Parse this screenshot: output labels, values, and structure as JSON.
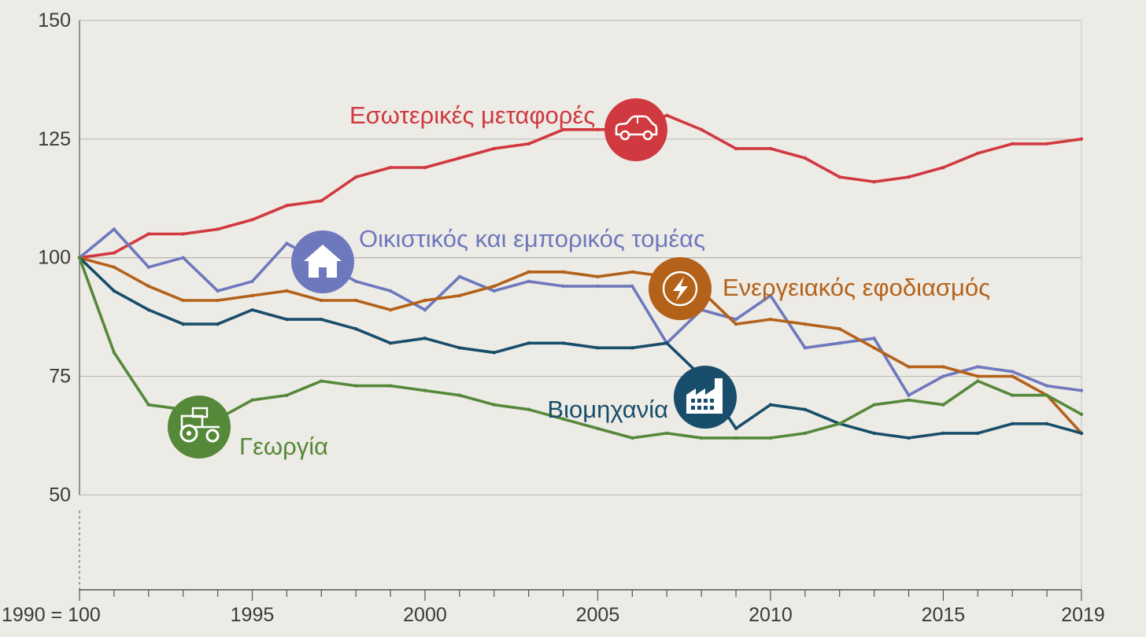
{
  "chart_data": {
    "type": "line",
    "title": "",
    "xlabel": "",
    "ylabel": "",
    "xlim": [
      1990,
      2019
    ],
    "ylim": [
      30,
      150
    ],
    "x_ticks": [
      {
        "value": 1990,
        "label": "1990 = 100"
      },
      {
        "value": 1995,
        "label": "1995"
      },
      {
        "value": 2000,
        "label": "2000"
      },
      {
        "value": 2005,
        "label": "2005"
      },
      {
        "value": 2010,
        "label": "2010"
      },
      {
        "value": 2015,
        "label": "2015"
      },
      {
        "value": 2019,
        "label": "2019"
      }
    ],
    "y_ticks": [
      50,
      75,
      100,
      125,
      150
    ],
    "grid": "horizontal",
    "legend": "inline labels with icons",
    "x": [
      1990,
      1991,
      1992,
      1993,
      1994,
      1995,
      1996,
      1997,
      1998,
      1999,
      2000,
      2001,
      2002,
      2003,
      2004,
      2005,
      2006,
      2007,
      2008,
      2009,
      2010,
      2011,
      2012,
      2013,
      2014,
      2015,
      2016,
      2017,
      2018,
      2019
    ],
    "series": [
      {
        "name": "Εσωτερικές μεταφορές",
        "color": "#d0393f",
        "icon": "car-icon",
        "values": [
          100,
          101,
          105,
          105,
          106,
          108,
          111,
          112,
          117,
          119,
          119,
          121,
          123,
          124,
          127,
          127,
          127,
          130,
          127,
          123,
          123,
          121,
          117,
          116,
          117,
          119,
          122,
          124,
          124,
          125
        ]
      },
      {
        "name": "Οικιστικός και εμπορικός τομέας",
        "color": "#6e78bd",
        "icon": "house-icon",
        "values": [
          100,
          106,
          98,
          100,
          93,
          95,
          103,
          99,
          95,
          93,
          89,
          96,
          93,
          95,
          94,
          94,
          94,
          82,
          89,
          87,
          92,
          81,
          82,
          83,
          71,
          75,
          77,
          76,
          73,
          72
        ]
      },
      {
        "name": "Ενεργειακός εφοδιασμός",
        "color": "#b4621a",
        "icon": "lightning-icon",
        "values": [
          100,
          98,
          94,
          91,
          91,
          92,
          93,
          91,
          91,
          89,
          91,
          92,
          94,
          97,
          97,
          96,
          97,
          96,
          93,
          86,
          87,
          86,
          85,
          81,
          77,
          77,
          75,
          75,
          71,
          63
        ]
      },
      {
        "name": "Βιομηχανία",
        "color": "#184d6b",
        "icon": "factory-icon",
        "values": [
          100,
          93,
          89,
          86,
          86,
          89,
          87,
          87,
          85,
          82,
          83,
          81,
          80,
          82,
          82,
          81,
          81,
          82,
          75,
          64,
          69,
          68,
          65,
          63,
          62,
          63,
          63,
          65,
          65,
          63
        ]
      },
      {
        "name": "Γεωργία",
        "color": "#56883a",
        "icon": "tractor-icon",
        "values": [
          100,
          80,
          69,
          68,
          66,
          70,
          71,
          74,
          73,
          73,
          72,
          71,
          69,
          68,
          66,
          64,
          62,
          63,
          62,
          62,
          62,
          63,
          65,
          69,
          70,
          69,
          74,
          71,
          71,
          67
        ]
      }
    ]
  }
}
